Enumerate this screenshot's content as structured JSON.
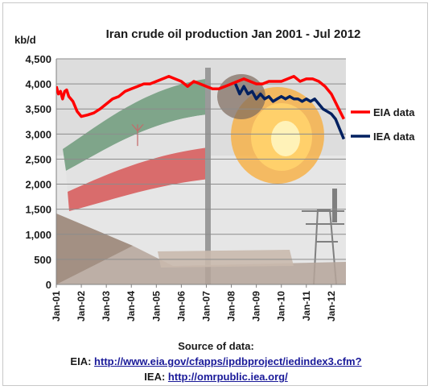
{
  "chart_data": {
    "type": "line",
    "title": "Iran crude oil production Jan 2001 - Jul 2012",
    "ylabel": "kb/d",
    "xlabel": "",
    "ylim": [
      0,
      4500
    ],
    "yticks": [
      "0",
      "500",
      "1,000",
      "1,500",
      "2,000",
      "2,500",
      "3,000",
      "3,500",
      "4,000",
      "4,500"
    ],
    "xticks": [
      "Jan-01",
      "Jan-02",
      "Jan-03",
      "Jan-04",
      "Jan-05",
      "Jan-06",
      "Jan-07",
      "Jan-08",
      "Jan-09",
      "Jan-10",
      "Jan-11",
      "Jan-12"
    ],
    "grid": "horizontal",
    "legend_position": "right",
    "background_image": "iran-flag-and-gas-flare-photo",
    "series": [
      {
        "name": "EIA data",
        "color": "#ff0000",
        "points": [
          [
            "2001-01",
            3950
          ],
          [
            "2001-02",
            3800
          ],
          [
            "2001-03",
            3850
          ],
          [
            "2001-04",
            3700
          ],
          [
            "2001-05",
            3850
          ],
          [
            "2001-06",
            3880
          ],
          [
            "2001-07",
            3750
          ],
          [
            "2001-08",
            3700
          ],
          [
            "2001-09",
            3650
          ],
          [
            "2001-10",
            3550
          ],
          [
            "2001-11",
            3450
          ],
          [
            "2002-01",
            3350
          ],
          [
            "2002-04",
            3380
          ],
          [
            "2002-07",
            3420
          ],
          [
            "2002-10",
            3500
          ],
          [
            "2003-01",
            3600
          ],
          [
            "2003-04",
            3700
          ],
          [
            "2003-07",
            3750
          ],
          [
            "2003-10",
            3850
          ],
          [
            "2004-01",
            3900
          ],
          [
            "2004-04",
            3950
          ],
          [
            "2004-07",
            4000
          ],
          [
            "2004-10",
            4000
          ],
          [
            "2005-01",
            4050
          ],
          [
            "2005-04",
            4100
          ],
          [
            "2005-07",
            4150
          ],
          [
            "2005-10",
            4100
          ],
          [
            "2006-01",
            4050
          ],
          [
            "2006-04",
            3950
          ],
          [
            "2006-07",
            4050
          ],
          [
            "2006-10",
            4000
          ],
          [
            "2007-01",
            3950
          ],
          [
            "2007-04",
            3900
          ],
          [
            "2007-07",
            3900
          ],
          [
            "2007-10",
            3950
          ],
          [
            "2008-01",
            4000
          ],
          [
            "2008-04",
            4050
          ],
          [
            "2008-07",
            4100
          ],
          [
            "2008-10",
            4050
          ],
          [
            "2009-01",
            4000
          ],
          [
            "2009-04",
            4000
          ],
          [
            "2009-07",
            4050
          ],
          [
            "2009-10",
            4050
          ],
          [
            "2010-01",
            4050
          ],
          [
            "2010-04",
            4100
          ],
          [
            "2010-07",
            4150
          ],
          [
            "2010-10",
            4050
          ],
          [
            "2011-01",
            4100
          ],
          [
            "2011-04",
            4100
          ],
          [
            "2011-07",
            4050
          ],
          [
            "2011-10",
            3950
          ],
          [
            "2012-01",
            3800
          ],
          [
            "2012-04",
            3550
          ],
          [
            "2012-07",
            3300
          ]
        ]
      },
      {
        "name": "IEA data",
        "color": "#002060",
        "points": [
          [
            "2008-03",
            4000
          ],
          [
            "2008-05",
            3800
          ],
          [
            "2008-07",
            3950
          ],
          [
            "2008-09",
            3800
          ],
          [
            "2008-11",
            3850
          ],
          [
            "2009-01",
            3700
          ],
          [
            "2009-03",
            3800
          ],
          [
            "2009-05",
            3700
          ],
          [
            "2009-07",
            3750
          ],
          [
            "2009-09",
            3650
          ],
          [
            "2009-11",
            3700
          ],
          [
            "2010-01",
            3750
          ],
          [
            "2010-03",
            3700
          ],
          [
            "2010-05",
            3750
          ],
          [
            "2010-07",
            3700
          ],
          [
            "2010-09",
            3700
          ],
          [
            "2010-11",
            3650
          ],
          [
            "2011-01",
            3700
          ],
          [
            "2011-03",
            3650
          ],
          [
            "2011-05",
            3700
          ],
          [
            "2011-07",
            3600
          ],
          [
            "2011-09",
            3500
          ],
          [
            "2011-11",
            3450
          ],
          [
            "2012-01",
            3400
          ],
          [
            "2012-03",
            3300
          ],
          [
            "2012-05",
            3100
          ],
          [
            "2012-07",
            2900
          ]
        ]
      }
    ]
  },
  "source": {
    "heading": "Source of data:",
    "eia_label": "EIA:",
    "eia_link": "http://www.eia.gov/cfapps/ipdbproject/iedindex3.cfm?",
    "iea_label": "IEA:",
    "iea_link": "http://omrpublic.iea.org/"
  }
}
